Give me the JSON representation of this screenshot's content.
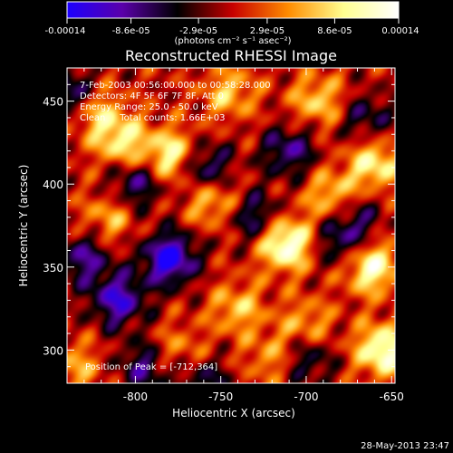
{
  "colorbar": {
    "ticks": [
      "-0.00014",
      "-8.6e-05",
      "-2.9e-05",
      "2.9e-05",
      "8.6e-05",
      "0.00014"
    ],
    "tick_values": [
      -0.00014,
      -8.6e-05,
      -2.9e-05,
      2.9e-05,
      8.6e-05,
      0.00014
    ],
    "unit_label": "(photons cm⁻² s⁻¹ asec⁻²)",
    "colors": [
      "#1c00ff",
      "#5a00aa",
      "#000000",
      "#c80000",
      "#ff8c00",
      "#ffff90",
      "#ffffff"
    ]
  },
  "chart_data": {
    "type": "heatmap",
    "title": "Reconstructed RHESSI Image",
    "xlabel": "Heliocentric X (arcsec)",
    "ylabel": "Heliocentric Y (arcsec)",
    "xlim": [
      -840,
      -648
    ],
    "ylim": [
      280,
      470
    ],
    "xticks": [
      "-800",
      "-750",
      "-700",
      "-650"
    ],
    "xtick_values": [
      -800,
      -750,
      -700,
      -650
    ],
    "yticks": [
      "300",
      "350",
      "400",
      "450"
    ],
    "ytick_values": [
      300,
      350,
      400,
      450
    ],
    "value_range": [
      -0.00014,
      0.00014
    ],
    "info_lines": [
      "7-Feb-2003 00:56:00.000 to 00:58:28.000",
      "Detectors: 4F 5F 6F 7F 8F, Att 0",
      "Energy Range: 25.0 - 50.0 keV",
      "Clean     Total counts: 1.66E+03"
    ],
    "peak_label": "Position of Peak = [-712,364]",
    "peak": [
      -712,
      364
    ],
    "bright_sources": [
      {
        "x": -712,
        "y": 364,
        "v": 1.0
      },
      {
        "x": -662,
        "y": 350,
        "v": 0.85
      },
      {
        "x": -655,
        "y": 300,
        "v": 0.9
      },
      {
        "x": -778,
        "y": 417,
        "v": 0.8
      },
      {
        "x": -807,
        "y": 425,
        "v": 0.65
      },
      {
        "x": -822,
        "y": 442,
        "v": 0.5
      },
      {
        "x": -660,
        "y": 412,
        "v": 0.7
      },
      {
        "x": -693,
        "y": 450,
        "v": 0.55
      },
      {
        "x": -745,
        "y": 455,
        "v": 0.5
      },
      {
        "x": -755,
        "y": 390,
        "v": 0.55
      },
      {
        "x": -815,
        "y": 380,
        "v": 0.45
      },
      {
        "x": -740,
        "y": 325,
        "v": 0.5
      },
      {
        "x": -700,
        "y": 315,
        "v": 0.45
      },
      {
        "x": -685,
        "y": 393,
        "v": 0.55
      },
      {
        "x": -720,
        "y": 295,
        "v": 0.4
      },
      {
        "x": -775,
        "y": 300,
        "v": 0.35
      },
      {
        "x": -835,
        "y": 290,
        "v": 0.4
      }
    ],
    "dark_sources": [
      {
        "x": -780,
        "y": 355,
        "v": -1.0
      },
      {
        "x": -810,
        "y": 330,
        "v": -0.8
      },
      {
        "x": -760,
        "y": 410,
        "v": -0.7
      },
      {
        "x": -800,
        "y": 400,
        "v": -0.6
      },
      {
        "x": -840,
        "y": 455,
        "v": -0.6
      },
      {
        "x": -710,
        "y": 420,
        "v": -0.6
      },
      {
        "x": -730,
        "y": 380,
        "v": -0.55
      },
      {
        "x": -680,
        "y": 365,
        "v": -0.5
      },
      {
        "x": -665,
        "y": 440,
        "v": -0.45
      },
      {
        "x": -700,
        "y": 295,
        "v": -0.5
      },
      {
        "x": -795,
        "y": 290,
        "v": -0.55
      },
      {
        "x": -830,
        "y": 355,
        "v": -0.6
      },
      {
        "x": -670,
        "y": 380,
        "v": -0.4
      },
      {
        "x": -760,
        "y": 280,
        "v": -0.45
      }
    ]
  },
  "footer": {
    "timestamp": "28-May-2013 23:47"
  }
}
